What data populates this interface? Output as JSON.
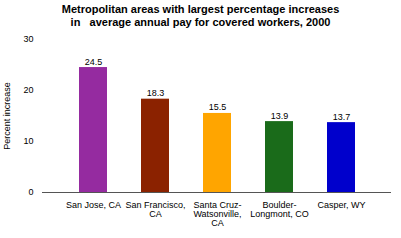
{
  "chart_data": {
    "type": "bar",
    "title": "Metropolitan areas with largest percentage increases\nin   average annual pay for covered workers, 2000",
    "categories": [
      "San Jose, CA",
      "San Francisco,\nCA",
      "Santa Cruz-\nWatsonville,\nCA",
      "Boulder-\nLongmont, CO",
      "Casper, WY"
    ],
    "values": [
      24.5,
      18.3,
      15.5,
      13.9,
      13.7
    ],
    "colors": [
      "#952BA0",
      "#8B2200",
      "#FFA500",
      "#1A6B1A",
      "#0000CC"
    ],
    "ylabel": "Percent increase",
    "ylim": [
      0,
      30
    ],
    "yticks": [
      0,
      10,
      20,
      30
    ],
    "grid": false,
    "data_labels": true
  }
}
